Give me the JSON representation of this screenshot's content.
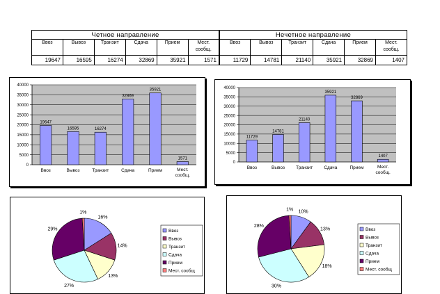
{
  "table": {
    "even_title": "Четное направление",
    "odd_title": "Нечетное направление",
    "columns": [
      "Ввоз",
      "Вывоз",
      "Транзит",
      "Сдача",
      "Прием",
      "Мест. сообщ."
    ],
    "even_values": [
      "19647",
      "16595",
      "16274",
      "32869",
      "35921",
      "1571"
    ],
    "odd_values": [
      "11729",
      "14781",
      "21140",
      "35921",
      "32869",
      "1407"
    ]
  },
  "colors": {
    "bar_fill": "#9999ff",
    "plot_bg": "#c0c0c0",
    "pie": [
      "#9999ff",
      "#993366",
      "#ffffcc",
      "#ccffff",
      "#660066",
      "#ff8080"
    ]
  },
  "chart_data": [
    {
      "type": "bar",
      "categories": [
        "Ввоз",
        "Вывоз",
        "Транзит",
        "Сдача",
        "Прием",
        "Мест. сообщ."
      ],
      "values": [
        19647,
        16595,
        16274,
        32869,
        35921,
        1571
      ],
      "ylim": [
        0,
        40000
      ],
      "yticks": [
        0,
        5000,
        10000,
        15000,
        20000,
        25000,
        30000,
        35000,
        40000
      ],
      "grid": true
    },
    {
      "type": "bar",
      "categories": [
        "Ввоз",
        "Вывоз",
        "Транзит",
        "Сдача",
        "Прием",
        "Мест. сообщ."
      ],
      "values": [
        11729,
        14781,
        21140,
        35921,
        32869,
        1407
      ],
      "ylim": [
        0,
        40000
      ],
      "yticks": [
        0,
        5000,
        10000,
        15000,
        20000,
        25000,
        30000,
        35000,
        40000
      ],
      "grid": true
    },
    {
      "type": "pie",
      "labels": [
        "Ввоз",
        "Вывоз",
        "Транзит",
        "Сдача",
        "Прием",
        "Мест. сообщ"
      ],
      "values": [
        16,
        14,
        13,
        27,
        29,
        1
      ],
      "legend": "right"
    },
    {
      "type": "pie",
      "labels": [
        "Ввоз",
        "Вывоз",
        "Транзит",
        "Сдача",
        "Прием",
        "Мест. сообщ"
      ],
      "values": [
        10,
        13,
        18,
        30,
        28,
        1
      ],
      "legend": "right"
    }
  ]
}
